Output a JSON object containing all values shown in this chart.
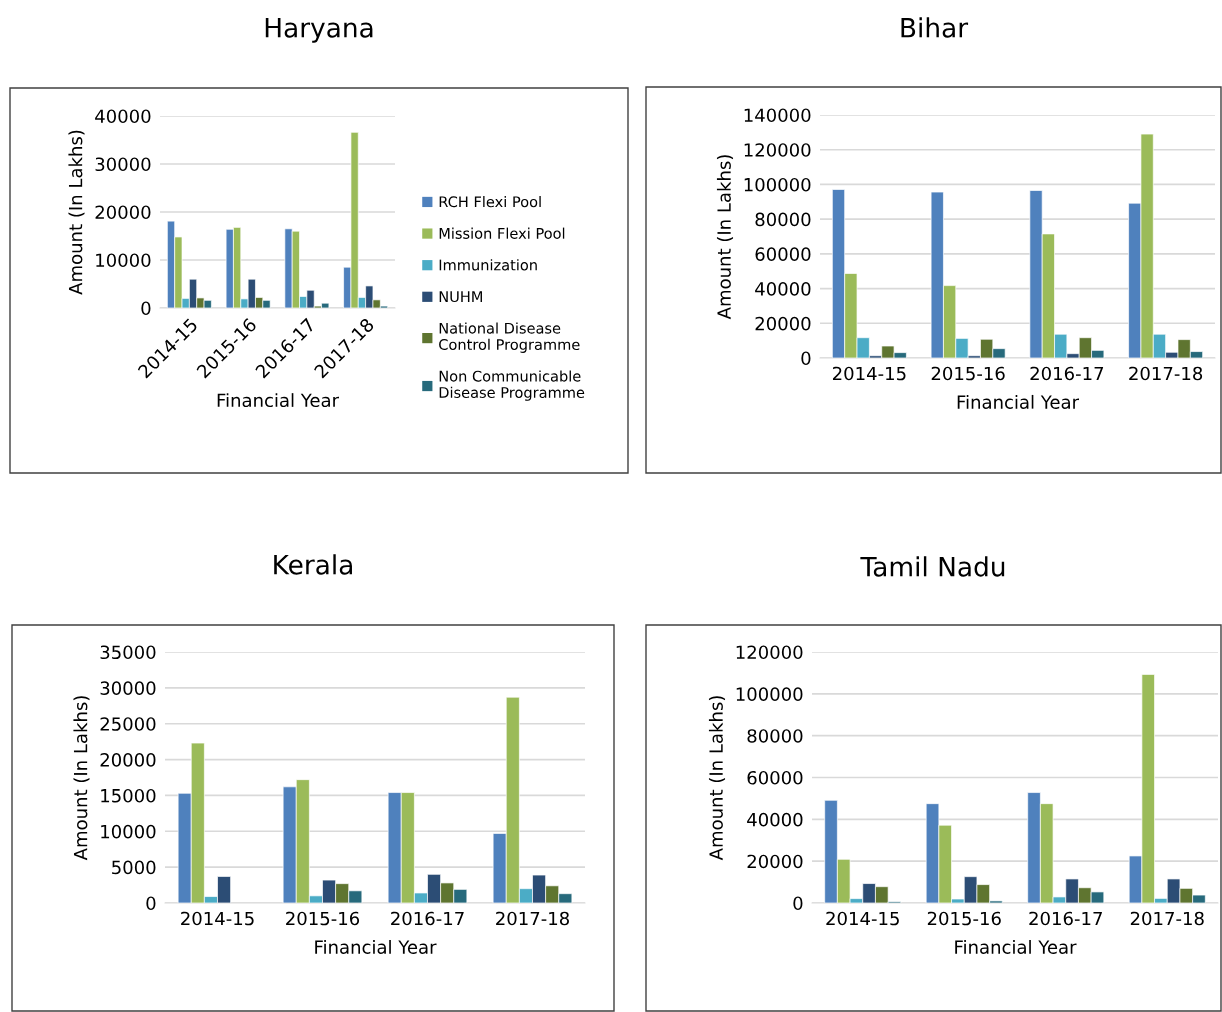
{
  "chart_data": [
    {
      "type": "bar",
      "title": "Haryana",
      "xlabel": "Financial Year",
      "ylabel": "Amount (In Lakhs)",
      "categories": [
        "2014-15",
        "2015-16",
        "2016-17",
        "2017-18"
      ],
      "ylim": [
        0,
        40000
      ],
      "yticks": [
        0,
        10000,
        20000,
        30000,
        40000
      ],
      "grid": "y",
      "legend": "right",
      "series": [
        {
          "name": "RCH Flexi Pool",
          "color": "#4f81bd",
          "values": [
            18100,
            16400,
            16500,
            8500
          ]
        },
        {
          "name": "Mission Flexi Pool",
          "color": "#9bbb59",
          "values": [
            14800,
            16800,
            16000,
            36600
          ]
        },
        {
          "name": "Immunization",
          "color": "#4bacc6",
          "values": [
            2000,
            1900,
            2400,
            2200
          ]
        },
        {
          "name": "NUHM",
          "color": "#2c4d75",
          "values": [
            6000,
            6000,
            3700,
            4600
          ]
        },
        {
          "name": "National Disease\nControl Programme",
          "color": "#5f7530",
          "values": [
            2100,
            2200,
            400,
            1700
          ]
        },
        {
          "name": "Non Communicable\nDisease Programme",
          "color": "#276a7c",
          "values": [
            1600,
            1600,
            1000,
            400
          ]
        }
      ]
    },
    {
      "type": "bar",
      "title": "Bihar",
      "xlabel": "Financial Year",
      "ylabel": "Amount (In Lakhs)",
      "categories": [
        "2014-15",
        "2015-16",
        "2016-17",
        "2017-18"
      ],
      "ylim": [
        0,
        140000
      ],
      "yticks": [
        0,
        20000,
        40000,
        60000,
        80000,
        100000,
        120000,
        140000
      ],
      "grid": "y",
      "series": [
        {
          "color": "#4f81bd",
          "values": [
            97100,
            95600,
            96500,
            89200
          ]
        },
        {
          "color": "#9bbb59",
          "values": [
            48700,
            41700,
            71500,
            129000
          ]
        },
        {
          "color": "#4bacc6",
          "values": [
            11700,
            11300,
            13700,
            13700
          ]
        },
        {
          "color": "#2c4d75",
          "values": [
            1300,
            1300,
            2500,
            3300
          ]
        },
        {
          "color": "#5f7530",
          "values": [
            6900,
            10800,
            11700,
            10600
          ]
        },
        {
          "color": "#276a7c",
          "values": [
            3100,
            5400,
            4400,
            3700
          ]
        }
      ]
    },
    {
      "type": "bar",
      "title": "Kerala",
      "xlabel": "Financial Year",
      "ylabel": "Amount (In Lakhs)",
      "categories": [
        "2014-15",
        "2015-16",
        "2016-17",
        "2017-18"
      ],
      "ylim": [
        0,
        35000
      ],
      "yticks": [
        0,
        5000,
        10000,
        15000,
        20000,
        25000,
        30000,
        35000
      ],
      "grid": "y",
      "series": [
        {
          "color": "#4f81bd",
          "values": [
            15300,
            16200,
            15400,
            9700
          ]
        },
        {
          "color": "#9bbb59",
          "values": [
            22300,
            17200,
            15400,
            28700
          ]
        },
        {
          "color": "#4bacc6",
          "values": [
            900,
            1000,
            1400,
            2000
          ]
        },
        {
          "color": "#2c4d75",
          "values": [
            3700,
            3200,
            4000,
            3900
          ]
        },
        {
          "color": "#5f7530",
          "values": [
            null,
            2700,
            2800,
            2400
          ]
        },
        {
          "color": "#276a7c",
          "values": [
            null,
            1700,
            1900,
            1300
          ]
        }
      ]
    },
    {
      "type": "bar",
      "title": "Tamil Nadu",
      "xlabel": "Financial Year",
      "ylabel": "Amount (In Lakhs)",
      "categories": [
        "2014-15",
        "2015-16",
        "2016-17",
        "2017-18"
      ],
      "ylim": [
        0,
        120000
      ],
      "yticks": [
        0,
        20000,
        40000,
        60000,
        80000,
        100000,
        120000
      ],
      "grid": "y",
      "series": [
        {
          "color": "#4f81bd",
          "values": [
            49100,
            47500,
            52800,
            22500
          ]
        },
        {
          "color": "#9bbb59",
          "values": [
            20900,
            37200,
            47500,
            109300
          ]
        },
        {
          "color": "#4bacc6",
          "values": [
            2100,
            1900,
            2900,
            2200
          ]
        },
        {
          "color": "#2c4d75",
          "values": [
            9300,
            12600,
            11500,
            11500
          ]
        },
        {
          "color": "#5f7530",
          "values": [
            7800,
            8800,
            7300,
            7000
          ]
        },
        {
          "color": "#276a7c",
          "values": [
            600,
            1000,
            5300,
            3800
          ]
        }
      ]
    }
  ]
}
